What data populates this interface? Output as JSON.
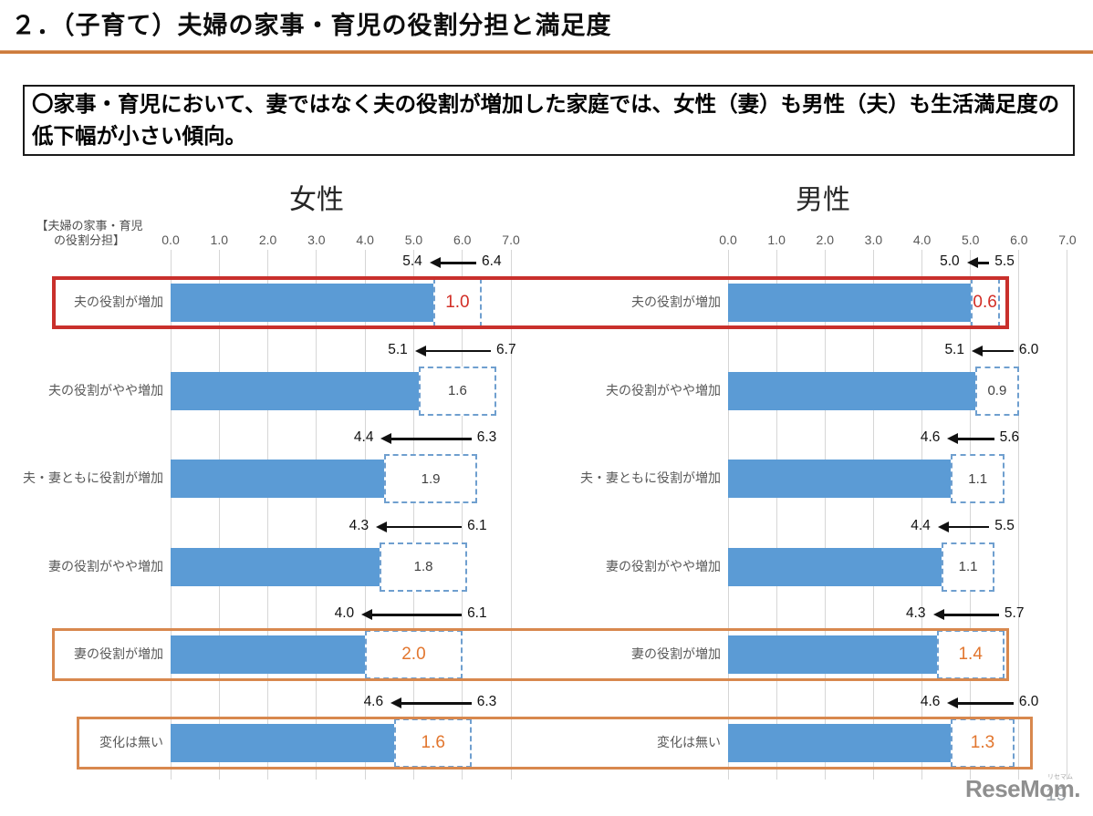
{
  "page": {
    "title": "２．（子育て）夫婦の家事・育児の役割分担と満足度",
    "summary": "〇家事・育児において、妻ではなく夫の役割が増加した家庭では、女性（妻）も男性（夫）も生活満足度の低下幅が小さい傾向。",
    "axis_note_line1": "【夫婦の家事・育児",
    "axis_note_line2": "の役割分担】",
    "logo_text": "ReseMom.",
    "logo_ruby": "リセマム",
    "page_number": "19"
  },
  "chart_data": {
    "type": "bar",
    "orientation": "horizontal",
    "xlim": [
      0,
      7
    ],
    "tick_labels": [
      "0.0",
      "1.0",
      "2.0",
      "3.0",
      "4.0",
      "5.0",
      "6.0",
      "7.0"
    ],
    "grid": true,
    "categories": [
      "夫の役割が増加",
      "夫の役割がやや増加",
      "夫・妻ともに役割が増加",
      "妻の役割がやや増加",
      "妻の役割が増加",
      "変化は無い"
    ],
    "value_meaning": "bar=satisfaction after childbirth, arrow-from=before childbirth, box=drop amount",
    "panels": [
      {
        "title": "女性",
        "rows": [
          {
            "category": "夫の役割が増加",
            "after": "5.4",
            "before": "6.4",
            "drop": "1.0",
            "drop_style": "red"
          },
          {
            "category": "夫の役割がやや増加",
            "after": "5.1",
            "before": "6.7",
            "drop": "1.6",
            "drop_style": "plain"
          },
          {
            "category": "夫・妻ともに役割が増加",
            "after": "4.4",
            "before": "6.3",
            "drop": "1.9",
            "drop_style": "plain"
          },
          {
            "category": "妻の役割がやや増加",
            "after": "4.3",
            "before": "6.1",
            "drop": "1.8",
            "drop_style": "plain"
          },
          {
            "category": "妻の役割が増加",
            "after": "4.0",
            "before": "6.1",
            "drop": "2.0",
            "drop_style": "orange"
          },
          {
            "category": "変化は無い",
            "after": "4.6",
            "before": "6.3",
            "drop": "1.6",
            "drop_style": "orange"
          }
        ]
      },
      {
        "title": "男性",
        "rows": [
          {
            "category": "夫の役割が増加",
            "after": "5.0",
            "before": "5.5",
            "drop": "0.6",
            "drop_style": "red"
          },
          {
            "category": "夫の役割がやや増加",
            "after": "5.1",
            "before": "6.0",
            "drop": "0.9",
            "drop_style": "plain"
          },
          {
            "category": "夫・妻ともに役割が増加",
            "after": "4.6",
            "before": "5.6",
            "drop": "1.1",
            "drop_style": "plain"
          },
          {
            "category": "妻の役割がやや増加",
            "after": "4.4",
            "before": "5.5",
            "drop": "1.1",
            "drop_style": "plain"
          },
          {
            "category": "妻の役割が増加",
            "after": "4.3",
            "before": "5.7",
            "drop": "1.4",
            "drop_style": "orange"
          },
          {
            "category": "変化は無い",
            "after": "4.6",
            "before": "6.0",
            "drop": "1.3",
            "drop_style": "orange"
          }
        ]
      }
    ],
    "highlights": [
      {
        "row_index": 0,
        "color": "red"
      },
      {
        "row_index": 4,
        "color": "orange"
      },
      {
        "row_index": 5,
        "color": "orange"
      }
    ],
    "colors": {
      "bar": "#5b9bd5",
      "drop_box_border": "#6f9fcf",
      "highlight_red": "#c9302c",
      "highlight_orange": "#d8884e",
      "drop_text_red": "#d22e26",
      "drop_text_orange": "#e2762e",
      "gridline": "#d6d6d6",
      "tick_text": "#595959"
    }
  }
}
